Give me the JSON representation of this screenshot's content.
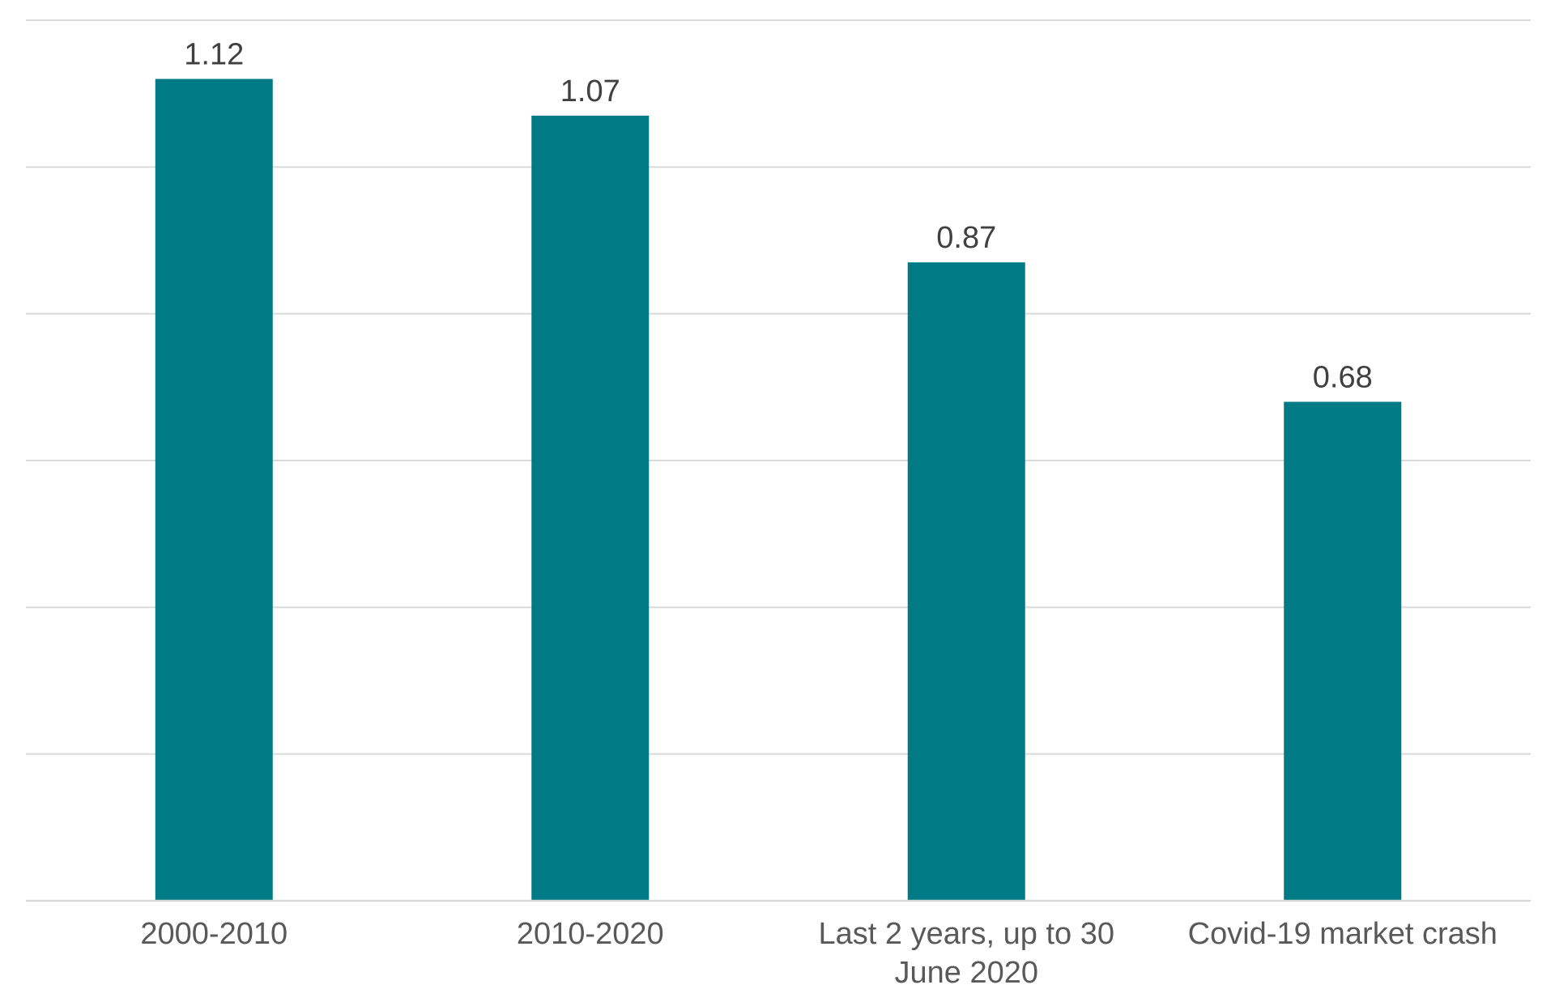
{
  "chart_data": {
    "type": "bar",
    "categories": [
      "2000-2010",
      "2010-2020",
      "Last 2 years, up to 30 June 2020",
      "Covid-19 market crash"
    ],
    "category_label_lines": [
      [
        "2000-2010"
      ],
      [
        "2010-2020"
      ],
      [
        "Last 2 years, up to 30",
        "June 2020"
      ],
      [
        "Covid-19 market crash"
      ]
    ],
    "values": [
      1.12,
      1.07,
      0.87,
      0.68
    ],
    "data_labels": [
      "1.12",
      "1.07",
      "0.87",
      "0.68"
    ],
    "title": "",
    "xlabel": "",
    "ylabel": "",
    "ylim": [
      0,
      1.2
    ],
    "ytick_step": 0.2,
    "grid": true,
    "legend": "none",
    "colors": {
      "bar": "#007b85",
      "grid": "#d9d9d9",
      "data_label": "#404040",
      "tick_label": "#595959"
    }
  }
}
